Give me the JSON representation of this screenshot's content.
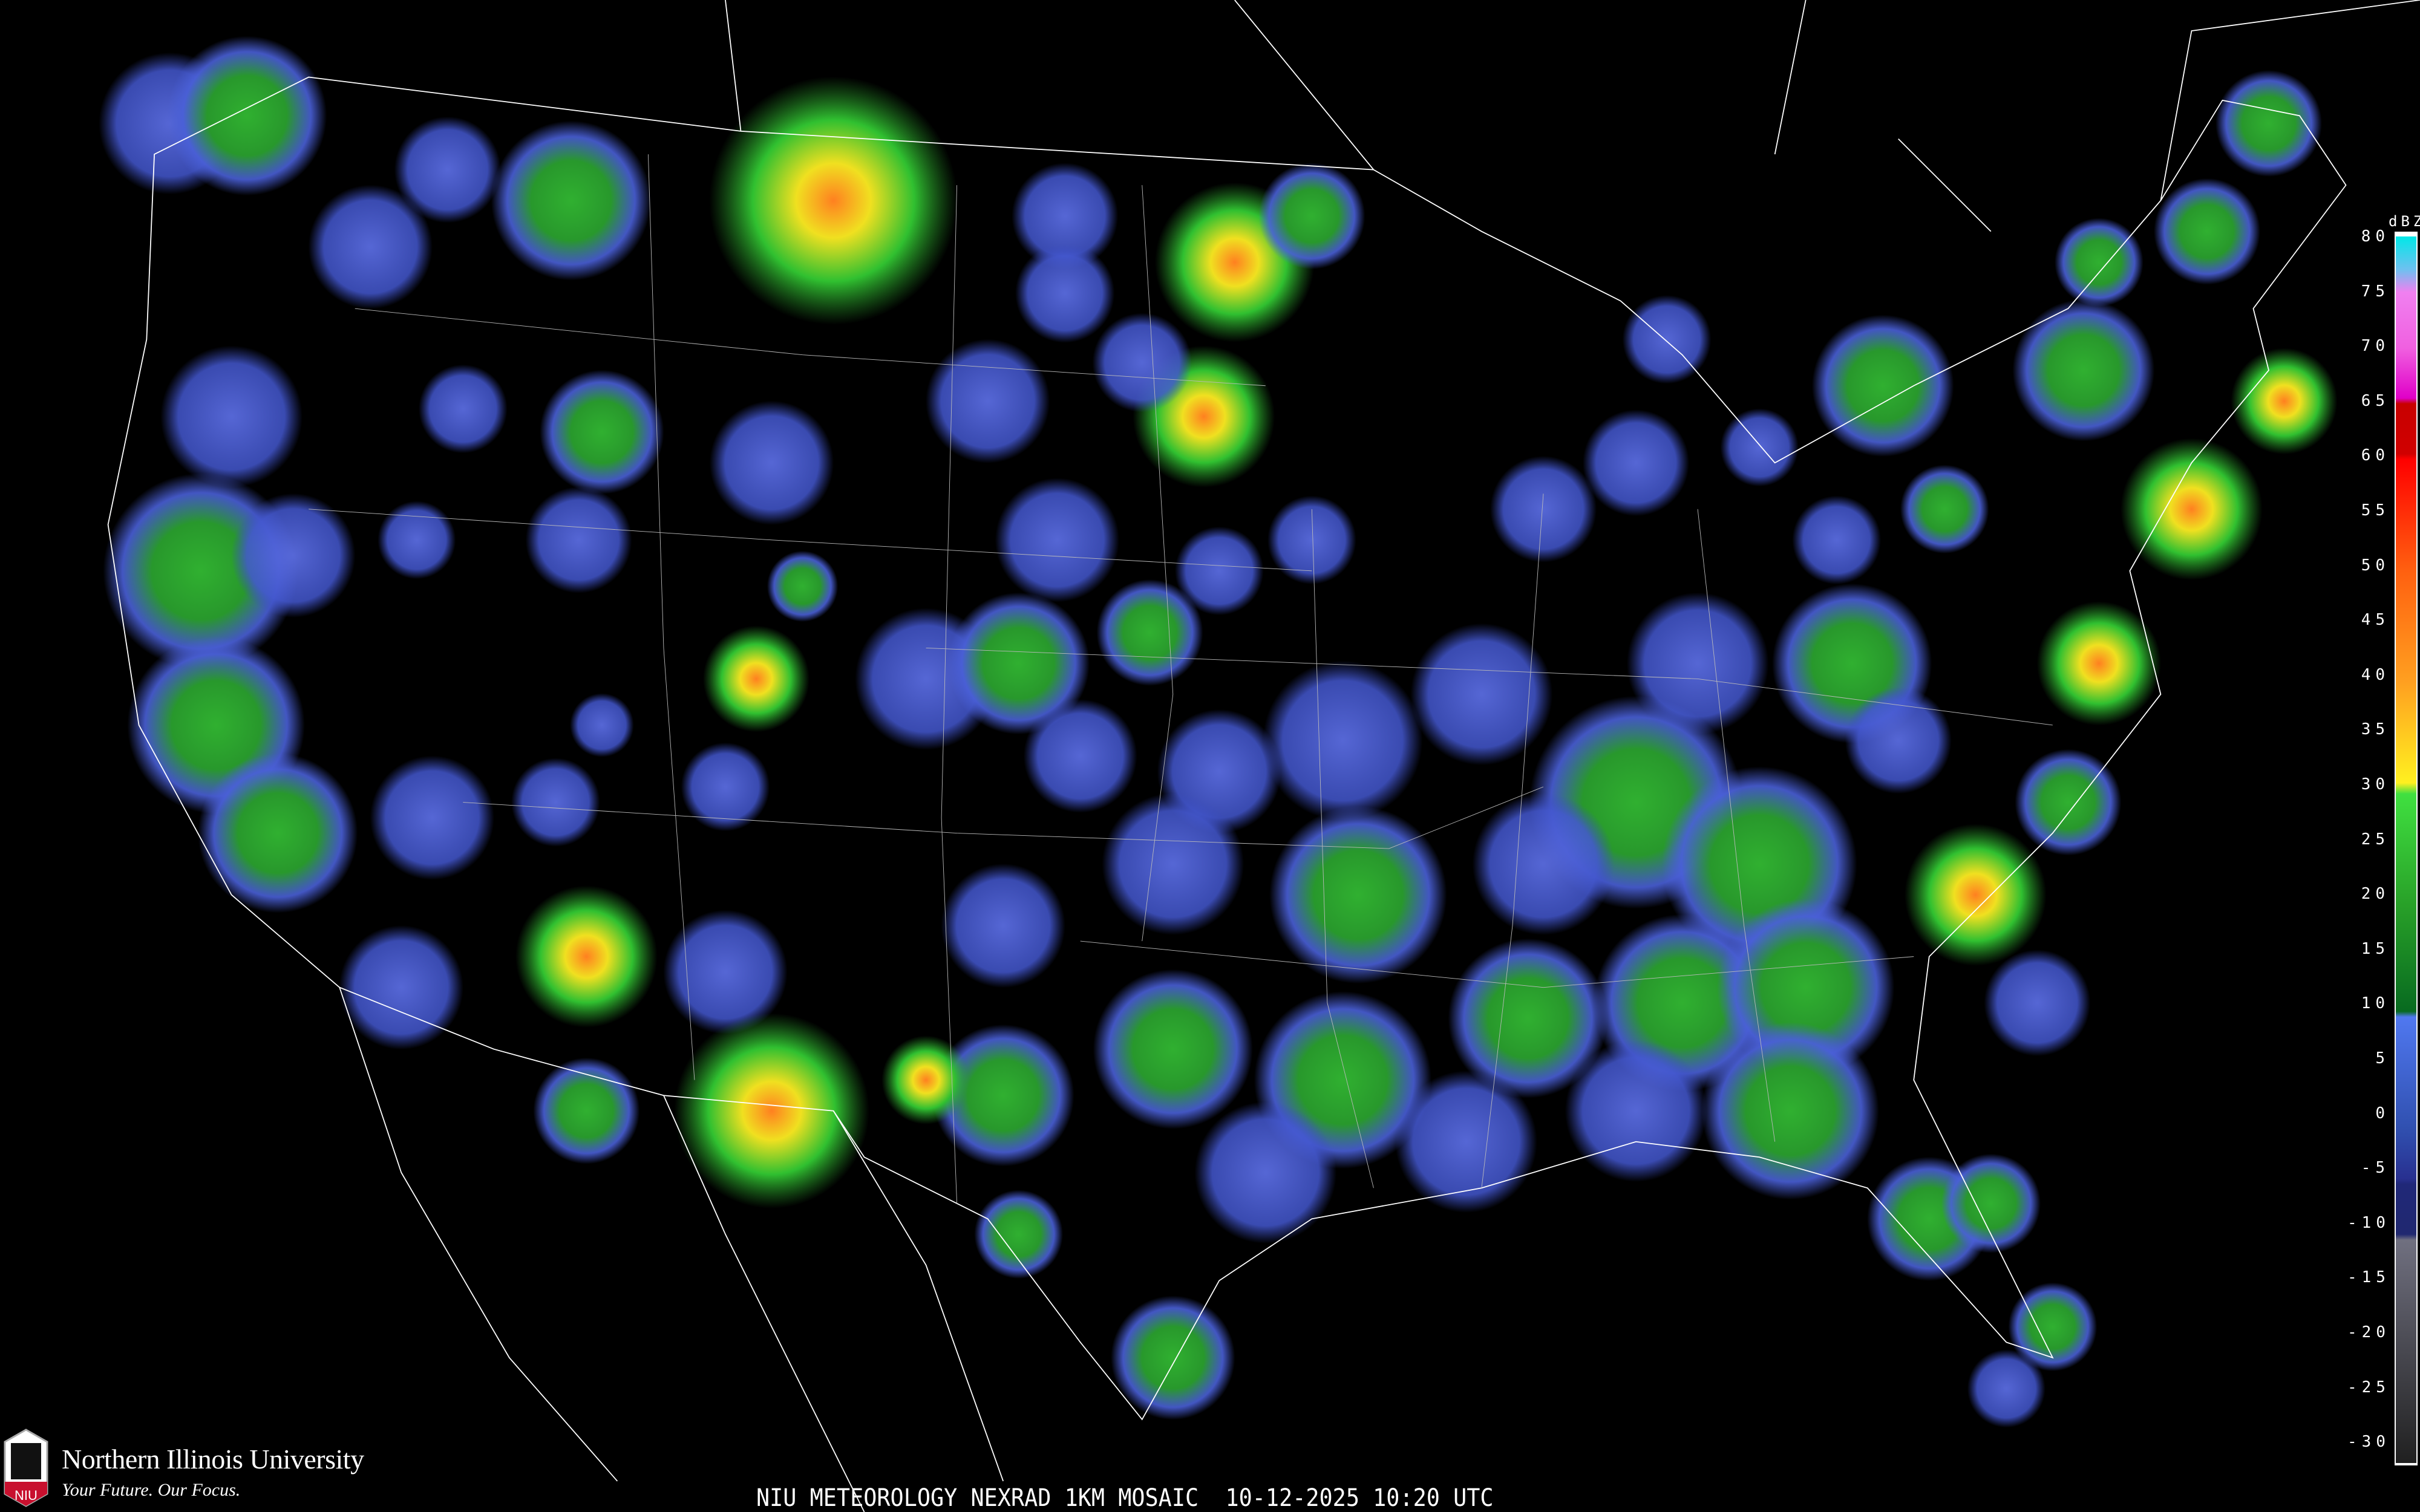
{
  "caption": "NIU METEOROLOGY NEXRAD 1KM MOSAIC  10-12-2025 10:20 UTC",
  "logo": {
    "name": "Northern Illinois University",
    "tagline": "Your Future. Our Focus.",
    "shield_text": "NIU"
  },
  "colorbar": {
    "unit": "dBZ",
    "labels": [
      "80",
      "75",
      "70",
      "65",
      "60",
      "55",
      "50",
      "45",
      "40",
      "35",
      "30",
      "25",
      "20",
      "15",
      "10",
      "5",
      "0",
      "-5",
      "-10",
      "-15",
      "-20",
      "-25",
      "-30"
    ],
    "colors": {
      "80": "#00e8e8",
      "75": "#f080f0",
      "65": "#c80000",
      "60": "#ff0000",
      "50": "#ff6010",
      "40": "#ffa020",
      "30": "#40e040",
      "10": "#5078f0",
      "-5": "#202878",
      "-10": "#707080",
      "-30": "#202020"
    }
  },
  "map": {
    "background": "#000000",
    "boundary_color": "#ffffff",
    "radar_colors": {
      "light": "#4a62d8",
      "moderate": "#2ea82e",
      "heavy": "#f0e020",
      "intense": "#ff7010"
    }
  }
}
